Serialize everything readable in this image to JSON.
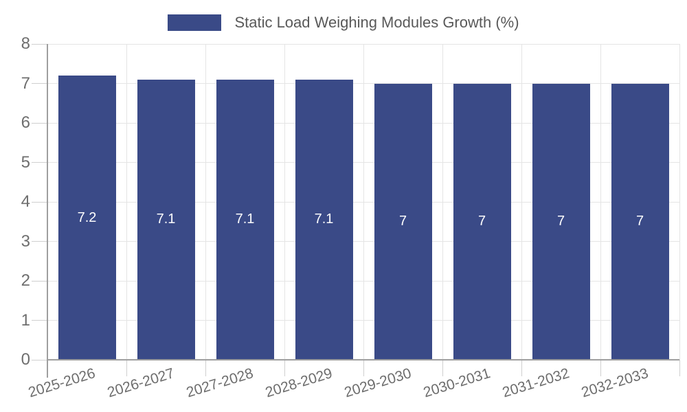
{
  "chart_data": {
    "type": "bar",
    "title": "",
    "categories": [
      "2025-2026",
      "2026-2027",
      "2027-2028",
      "2028-2029",
      "2029-2030",
      "2030-2031",
      "2031-2032",
      "2032-2033"
    ],
    "series": [
      {
        "name": "Static Load Weighing Modules Growth (%)",
        "values": [
          7.2,
          7.1,
          7.1,
          7.1,
          7,
          7,
          7,
          7
        ],
        "value_labels": [
          "7.2",
          "7.1",
          "7.1",
          "7.1",
          "7",
          "7",
          "7",
          "7"
        ],
        "color": "#3A4A87"
      }
    ],
    "xlabel": "",
    "ylabel": "",
    "ylim": [
      0,
      8
    ],
    "yticks": [
      0,
      1,
      2,
      3,
      4,
      5,
      6,
      7,
      8
    ],
    "grid": {
      "horizontal": true,
      "vertical": true
    },
    "legend_position": "top",
    "bar_label_color": "#FFFFFF"
  },
  "style": {
    "bar_color": "#3A4A87",
    "grid_color": "#E4E4E4",
    "tick_color": "#CFCFCF",
    "axis_color": "#9E9E9E",
    "axis_label_color": "#6E6E6E",
    "legend_text_color": "#595959",
    "bar_label_color": "#FFFFFF",
    "background": "#FFFFFF"
  }
}
